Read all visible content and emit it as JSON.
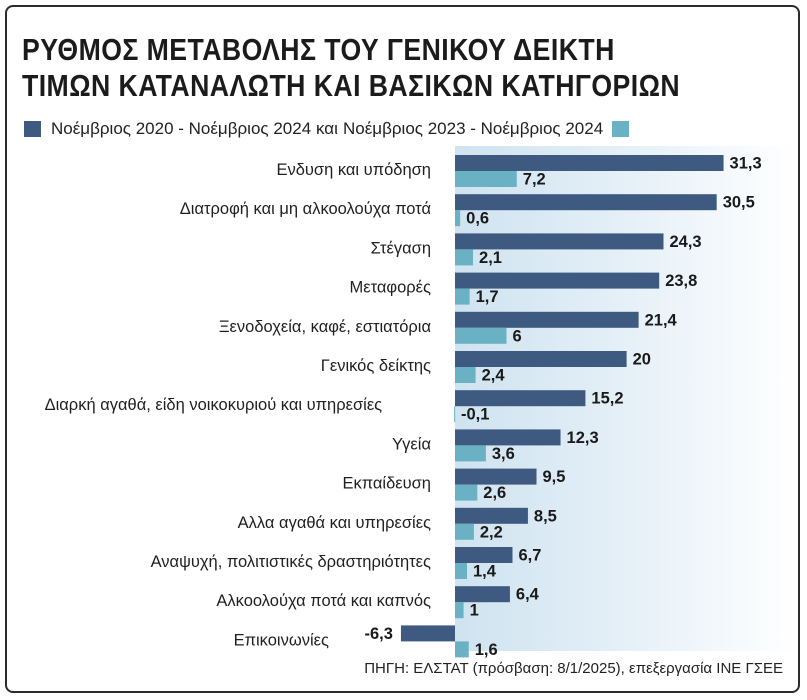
{
  "chart_data": {
    "type": "bar",
    "orientation": "horizontal",
    "title_lines": [
      "ΡΥΘΜΟΣ ΜΕΤΑΒΟΛΗΣ ΤΟΥ ΓΕΝΙΚΟΥ ΔΕΙΚΤΗ",
      "ΤΙΜΩΝ ΚΑΤΑΝΑΛΩΤΗ ΚΑΙ ΒΑΣΙΚΩΝ ΚΑΤΗΓΟΡΙΩΝ"
    ],
    "categories": [
      "Ενδυση και υπόδηση",
      "Διατροφή και μη αλκοολούχα ποτά",
      "Στέγαση",
      "Μεταφορές",
      "Ξενοδοχεία, καφέ, εστιατόρια",
      "Γενικός δείκτης",
      "Διαρκή αγαθά, είδη νοικοκυριού και υπηρεσίες",
      "Υγεία",
      "Εκπαίδευση",
      "Αλλα αγαθά και υπηρεσίες",
      "Αναψυχή, πολιτιστικές δραστηριότητες",
      "Αλκοολούχα ποτά και καπνός",
      "Επικοινωνίες"
    ],
    "series": [
      {
        "name": "Νοέμβριος 2020 - Νοέμβριος 2024",
        "color": "#3f5a80",
        "values": [
          31.3,
          30.5,
          24.3,
          23.8,
          21.4,
          20,
          15.2,
          12.3,
          9.5,
          8.5,
          6.7,
          6.4,
          -6.3
        ],
        "labels": [
          "31,3",
          "30,5",
          "24,3",
          "23,8",
          "21,4",
          "20",
          "15,2",
          "12,3",
          "9,5",
          "8,5",
          "6,7",
          "6,4",
          "-6,3"
        ]
      },
      {
        "name": "Νοέμβριος 2023 - Νοέμβριος 2024",
        "color": "#6ab2c3",
        "values": [
          7.2,
          0.6,
          2.1,
          1.7,
          6,
          2.4,
          -0.1,
          3.6,
          2.6,
          2.2,
          1.4,
          1,
          1.6
        ],
        "labels": [
          "7,2",
          "0,6",
          "2,1",
          "1,7",
          "6",
          "2,4",
          "-0,1",
          "3,6",
          "2,6",
          "2,2",
          "1,4",
          "1",
          "1,6"
        ]
      }
    ],
    "legend_connector": "και",
    "legend_position": "top",
    "xlim": [
      -6.3,
      31.3
    ],
    "grid": false,
    "source": "ΠΗΓΗ: ΕΛΣΤΑΤ (πρόσβαση: 8/1/2025), επεξεργασία ΙΝΕ ΓΣΕΕ"
  }
}
